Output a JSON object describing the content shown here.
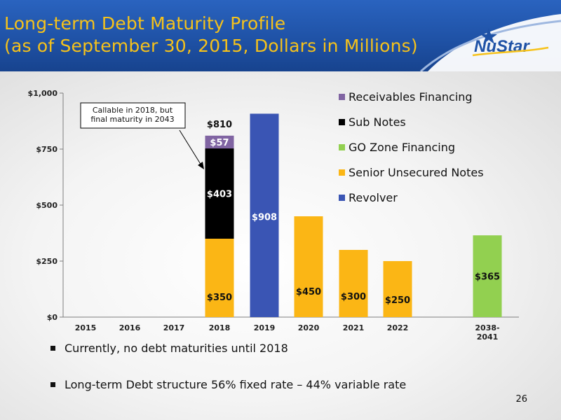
{
  "slide": {
    "title_line1": "Long-term Debt Maturity Profile",
    "title_line2": "(as of September 30, 2015, Dollars in Millions)",
    "logo_text": "NuStar",
    "bullets": [
      "Currently, no debt maturities until 2018",
      "Long-term Debt structure 56% fixed rate – 44% variable rate"
    ],
    "page_number": "26"
  },
  "chart_data": {
    "type": "bar",
    "stacked": true,
    "categories": [
      "2015",
      "2016",
      "2017",
      "2018",
      "2019",
      "2020",
      "2021",
      "2022",
      "2038-\n2041"
    ],
    "series": [
      {
        "name": "Revolver",
        "color": "#3a55b4",
        "values": [
          0,
          0,
          0,
          0,
          908,
          0,
          0,
          0,
          0
        ],
        "labels": [
          "",
          "",
          "",
          "",
          "$908",
          "",
          "",
          "",
          ""
        ]
      },
      {
        "name": "Senior Unsecured Notes",
        "color": "#fbb615",
        "values": [
          0,
          0,
          0,
          350,
          0,
          450,
          300,
          250,
          0
        ],
        "labels": [
          "",
          "",
          "",
          "$350",
          "",
          "$450",
          "$300",
          "$250",
          ""
        ]
      },
      {
        "name": "GO Zone Financing",
        "color": "#92d050",
        "values": [
          0,
          0,
          0,
          0,
          0,
          0,
          0,
          0,
          365
        ],
        "labels": [
          "",
          "",
          "",
          "",
          "",
          "",
          "",
          "",
          "$365"
        ]
      },
      {
        "name": "Sub Notes",
        "color": "#000000",
        "values": [
          0,
          0,
          0,
          403,
          0,
          0,
          0,
          0,
          0
        ],
        "labels": [
          "",
          "",
          "",
          "$403",
          "",
          "",
          "",
          "",
          ""
        ]
      },
      {
        "name": "Receivables Financing",
        "color": "#8064a2",
        "values": [
          0,
          0,
          0,
          57,
          0,
          0,
          0,
          0,
          0
        ],
        "labels": [
          "",
          "",
          "",
          "$57",
          "",
          "",
          "",
          "",
          ""
        ]
      }
    ],
    "totals": [
      {
        "category": "2018",
        "label": "$810"
      }
    ],
    "ylim": [
      0,
      1000
    ],
    "yticks": [
      0,
      250,
      500,
      750,
      1000
    ],
    "ytick_labels": [
      "$0",
      "$250",
      "$500",
      "$750",
      "$1,000"
    ],
    "legend_order": [
      "Receivables Financing",
      "Sub Notes",
      "GO Zone Financing",
      "Senior Unsecured Notes",
      "Revolver"
    ],
    "legend_position": "top-right",
    "annotation": {
      "lines": [
        "Callable in 2018, but",
        "final maturity in 2043"
      ],
      "points_to": "2018 Sub Notes"
    },
    "xlabel": "",
    "ylabel": "",
    "grid": false
  }
}
